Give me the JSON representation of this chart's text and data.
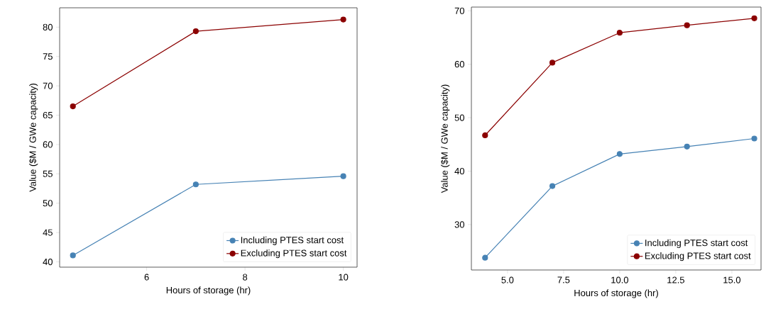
{
  "chart_data": [
    {
      "type": "line",
      "xlabel": "Hours of storage (hr)",
      "ylabel": "Value ($M / GWe capacity)",
      "x": [
        4.5,
        7,
        10
      ],
      "series": [
        {
          "name": "Including PTES start cost",
          "color": "#4682b4",
          "values": [
            41.1,
            53.2,
            54.6
          ]
        },
        {
          "name": "Excluding PTES start cost",
          "color": "#8b0000",
          "values": [
            66.5,
            79.3,
            81.3
          ]
        }
      ],
      "xlim": [
        4.23,
        10.28
      ],
      "ylim": [
        39.1,
        83.3
      ],
      "xticks": [
        6,
        8,
        10
      ],
      "yticks": [
        40,
        45,
        50,
        55,
        60,
        65,
        70,
        75,
        80
      ],
      "marker": "circle",
      "line_style": "solid",
      "legend": "bottom right",
      "grid": false
    },
    {
      "type": "line",
      "xlabel": "Hours of storage (hr)",
      "ylabel": "Value ($M / GWe capacity)",
      "x": [
        4,
        7,
        10,
        13,
        16
      ],
      "series": [
        {
          "name": "Including PTES start cost",
          "color": "#4682b4",
          "values": [
            23.8,
            37.2,
            43.2,
            44.6,
            46.1
          ]
        },
        {
          "name": "Excluding PTES start cost",
          "color": "#8b0000",
          "values": [
            46.7,
            60.3,
            65.9,
            67.3,
            68.6
          ]
        }
      ],
      "xlim": [
        3.39,
        16.3
      ],
      "ylim": [
        21.5,
        70.7
      ],
      "xticks": [
        {
          "value": 5,
          "label": "5.0"
        },
        {
          "value": 7.5,
          "label": "7.5"
        },
        {
          "value": 10,
          "label": "10.0"
        },
        {
          "value": 12.5,
          "label": "12.5"
        },
        {
          "value": 15,
          "label": "15.0"
        }
      ],
      "yticks": [
        30,
        40,
        50,
        60,
        70
      ],
      "marker": "circle",
      "line_style": "solid",
      "legend": "bottom right",
      "grid": false
    }
  ]
}
